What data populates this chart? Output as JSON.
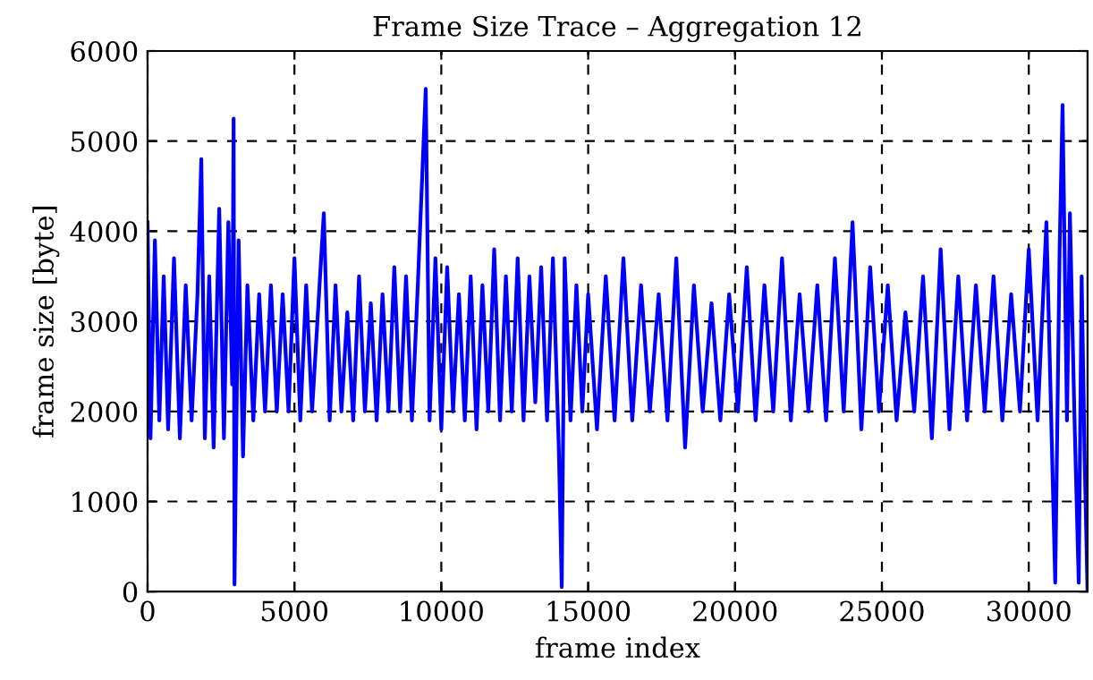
{
  "chart_data": {
    "type": "line",
    "title": "Frame Size Trace – Aggregation 12",
    "xlabel": "frame index",
    "ylabel": "frame size [byte]",
    "xlim": [
      0,
      32000
    ],
    "ylim": [
      0,
      6000
    ],
    "xticks": [
      0,
      5000,
      10000,
      15000,
      20000,
      25000,
      30000
    ],
    "yticks": [
      0,
      1000,
      2000,
      3000,
      4000,
      5000,
      6000
    ],
    "grid": true,
    "line_style": "solid",
    "marker": "none",
    "series": [
      {
        "color": "#0000ff",
        "x": [
          0,
          100,
          250,
          400,
          550,
          700,
          900,
          1100,
          1300,
          1500,
          1700,
          1830,
          1950,
          2100,
          2250,
          2440,
          2600,
          2750,
          2880,
          2930,
          2960,
          3100,
          3250,
          3400,
          3600,
          3800,
          4000,
          4200,
          4400,
          4600,
          4800,
          5000,
          5200,
          5400,
          5600,
          5800,
          6000,
          6200,
          6400,
          6600,
          6800,
          7000,
          7200,
          7400,
          7600,
          7800,
          8000,
          8200,
          8400,
          8600,
          8800,
          9000,
          9200,
          9470,
          9600,
          9800,
          10000,
          10200,
          10400,
          10600,
          10800,
          11000,
          11200,
          11400,
          11600,
          11800,
          12000,
          12200,
          12400,
          12600,
          12800,
          13000,
          13200,
          13400,
          13600,
          13800,
          14000,
          14100,
          14200,
          14400,
          14600,
          14800,
          15000,
          15300,
          15600,
          15900,
          16200,
          16500,
          16800,
          17100,
          17400,
          17700,
          18000,
          18300,
          18600,
          18900,
          19200,
          19500,
          19800,
          20100,
          20400,
          20700,
          21000,
          21300,
          21600,
          21900,
          22200,
          22500,
          22800,
          23100,
          23400,
          23700,
          24000,
          24300,
          24600,
          24900,
          25200,
          25500,
          25800,
          26100,
          26400,
          26700,
          27000,
          27300,
          27600,
          27900,
          28200,
          28500,
          28800,
          29100,
          29400,
          29700,
          30000,
          30300,
          30600,
          30900,
          31050,
          31150,
          31300,
          31400,
          31550,
          31700,
          31800,
          31900,
          32000
        ],
        "values": [
          4100,
          1700,
          3900,
          1900,
          3500,
          1800,
          3700,
          1700,
          3400,
          1900,
          3300,
          4800,
          1700,
          3500,
          1600,
          4250,
          1700,
          4100,
          2300,
          5250,
          80,
          3900,
          1500,
          3400,
          1900,
          3300,
          2000,
          3400,
          2000,
          3300,
          2000,
          3700,
          1900,
          3400,
          2000,
          3100,
          4200,
          1900,
          3400,
          2000,
          3100,
          1900,
          3500,
          2000,
          3200,
          1900,
          3300,
          2000,
          3600,
          2000,
          3500,
          1900,
          3400,
          5580,
          1900,
          3700,
          1800,
          3600,
          2000,
          3300,
          1900,
          3500,
          1800,
          3400,
          2000,
          3800,
          1900,
          3500,
          2000,
          3700,
          1900,
          3500,
          2100,
          3600,
          1900,
          3700,
          1600,
          50,
          3700,
          1900,
          3400,
          2000,
          3300,
          1800,
          3500,
          1900,
          3700,
          1900,
          3400,
          2000,
          3300,
          1900,
          3700,
          1600,
          3400,
          2000,
          3200,
          1900,
          3300,
          2000,
          3600,
          1900,
          3400,
          2000,
          3700,
          1900,
          3300,
          2000,
          3400,
          1900,
          3700,
          2000,
          4100,
          1800,
          3600,
          2000,
          3400,
          1900,
          3100,
          2000,
          3500,
          1700,
          3800,
          1800,
          3500,
          1900,
          3400,
          2000,
          3500,
          1900,
          3300,
          2000,
          3800,
          1900,
          4100,
          100,
          3800,
          5400,
          1900,
          4200,
          2000,
          100,
          3500,
          1500,
          0
        ]
      }
    ]
  }
}
